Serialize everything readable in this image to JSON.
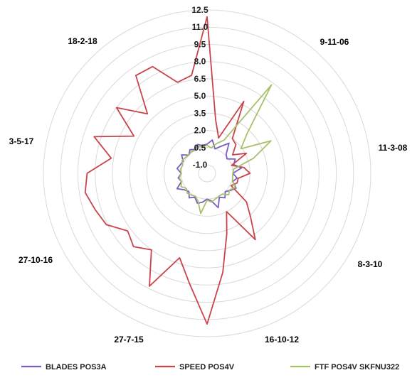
{
  "chart_data": {
    "type": "radar",
    "radial_axis": {
      "min": -1.0,
      "max": 12.5,
      "ticks": [
        "12.5",
        "11.0",
        "9.5",
        "8.0",
        "6.5",
        "5.0",
        "3.5",
        "2.0",
        "0.5",
        "-1.0"
      ],
      "tick_values": [
        12.5,
        11.0,
        9.5,
        8.0,
        6.5,
        5.0,
        3.5,
        2.0,
        0.5,
        -1.0
      ]
    },
    "category_labels": [
      "9-11-06",
      "11-3-08",
      "8-3-10",
      "16-10-12",
      "27-7-15",
      "27-10-16",
      "3-5-17",
      "18-2-18"
    ],
    "series": [
      {
        "name": "BLADES POS3A",
        "color": "#7b5cc4",
        "values": [
          0.8,
          1.2,
          0.5,
          0.9,
          1.5,
          0.6,
          0.4,
          1.0,
          0.7,
          1.3,
          0.5,
          0.9,
          0.6,
          1.1,
          0.8,
          0.5,
          0.9,
          0.6,
          1.4,
          0.7,
          0.5,
          0.8,
          1.0,
          0.6,
          0.9,
          0.5,
          0.7,
          1.2,
          0.6,
          0.8,
          0.5,
          0.9,
          0.7,
          0.6,
          1.0,
          0.5,
          0.8,
          0.6,
          0.9,
          0.7
        ]
      },
      {
        "name": "SPEED POS4V",
        "color": "#c9444a",
        "values": [
          11.9,
          3.0,
          1.5,
          5.3,
          2.0,
          1.8,
          1.0,
          2.1,
          0.5,
          1.5,
          2.0,
          1.0,
          1.0,
          0.6,
          2.5,
          3.6,
          5.4,
          2.0,
          3.8,
          7.0,
          11.4,
          8.0,
          6.0,
          9.3,
          6.5,
          7.3,
          6.8,
          8.1,
          8.5,
          9.0,
          8.7,
          6.7,
          8.6,
          5.4,
          8.0,
          5.6,
          8.8,
          8.7,
          6.6,
          6.9
        ]
      },
      {
        "name": "FTF POS4V SKFNU322",
        "color": "#a7c06a",
        "values": [
          0.7,
          0.5,
          1.0,
          1.5,
          7.8,
          3.2,
          1.9,
          4.5,
          2.5,
          0.6,
          0.5,
          0.5,
          0.6,
          1.0,
          0.7,
          0.9,
          0.5,
          0.5,
          0.6,
          0.8,
          0.6,
          1.8,
          0.8,
          0.5,
          0.6,
          0.7,
          0.5,
          0.8,
          0.6,
          0.7,
          0.5,
          0.6,
          0.5,
          0.7,
          0.6,
          0.5,
          0.6,
          0.5,
          0.7,
          0.6
        ]
      }
    ],
    "legend_position": "bottom",
    "grid": true
  }
}
